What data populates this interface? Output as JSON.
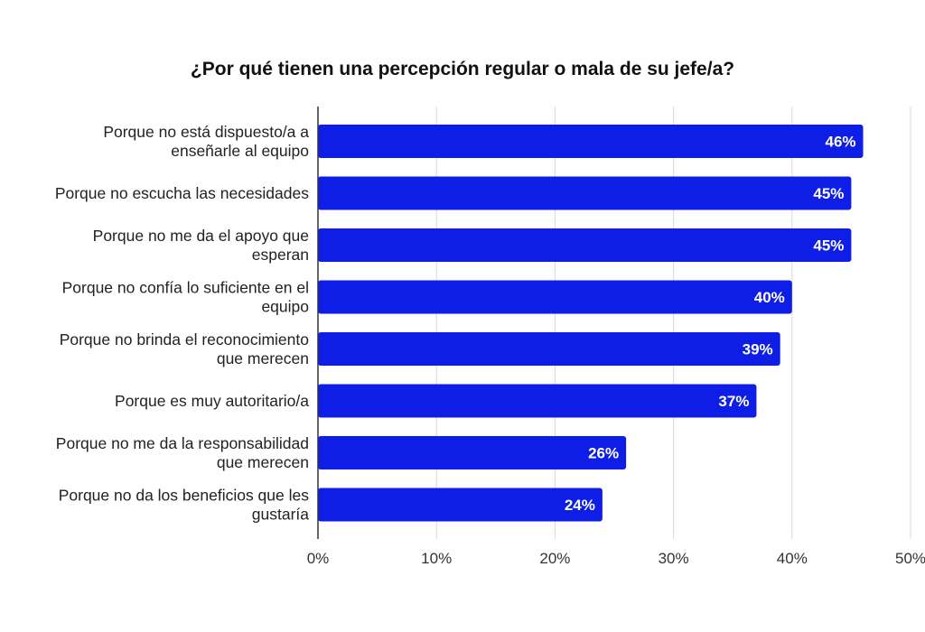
{
  "chart_data": {
    "type": "bar",
    "orientation": "horizontal",
    "title": "¿Por qué tienen una percepción regular o mala de su jefe/a?",
    "xlabel": "",
    "ylabel": "",
    "xlim": [
      0,
      50
    ],
    "grid": true,
    "bar_color": "#0f1ee6",
    "categories": [
      [
        "Porque no está dispuesto/a a",
        "enseñarle al equipo"
      ],
      [
        "Porque no escucha las necesidades"
      ],
      [
        "Porque no me da el apoyo que",
        "esperan"
      ],
      [
        "Porque no confía lo suficiente en el",
        "equipo"
      ],
      [
        "Porque no brinda el reconocimiento",
        "que merecen"
      ],
      [
        "Porque es muy autoritario/a"
      ],
      [
        "Porque no me da la responsabilidad",
        "que merecen"
      ],
      [
        "Porque no da los beneficios que les",
        "gustaría"
      ]
    ],
    "values": [
      46,
      45,
      45,
      40,
      39,
      37,
      26,
      24
    ],
    "data_labels": [
      "46%",
      "45%",
      "45%",
      "40%",
      "39%",
      "37%",
      "26%",
      "24%"
    ],
    "ticks": [
      0,
      10,
      20,
      30,
      40,
      50
    ],
    "tick_labels": [
      "0%",
      "10%",
      "20%",
      "30%",
      "40%",
      "50%"
    ]
  }
}
